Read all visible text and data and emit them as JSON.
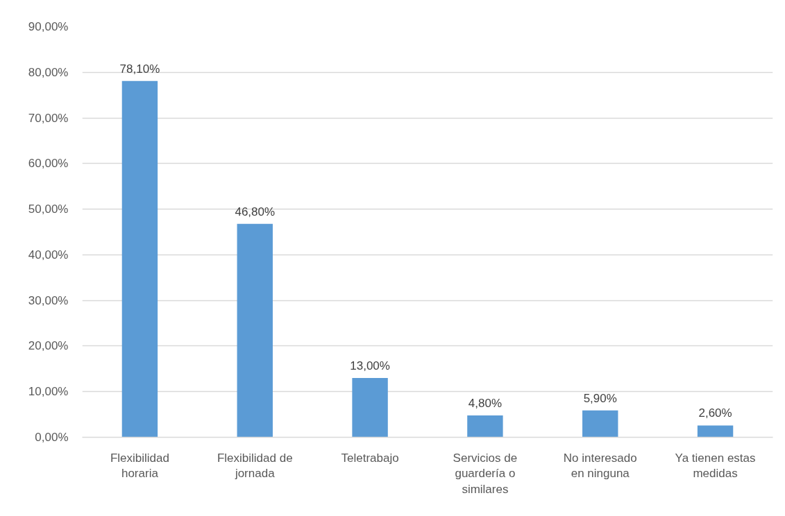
{
  "chart_data": {
    "type": "bar",
    "categories": [
      "Flexibilidad horaria",
      "Flexibilidad de jornada",
      "Teletrabajo",
      "Servicios de guardería o similares",
      "No interesado en ninguna",
      "Ya tienen estas medidas"
    ],
    "values": [
      78.1,
      46.8,
      13.0,
      4.8,
      5.9,
      2.6
    ],
    "value_labels": [
      "78,10%",
      "46,80%",
      "13,00%",
      "4,80%",
      "5,90%",
      "2,60%"
    ],
    "color": "#5b9bd5",
    "ylim": [
      0,
      90
    ],
    "yticks": [
      {
        "value": 0,
        "label": "0,00%"
      },
      {
        "value": 10,
        "label": "10,00%"
      },
      {
        "value": 20,
        "label": "20,00%"
      },
      {
        "value": 30,
        "label": "30,00%"
      },
      {
        "value": 40,
        "label": "40,00%"
      },
      {
        "value": 50,
        "label": "50,00%"
      },
      {
        "value": 60,
        "label": "60,00%"
      },
      {
        "value": 70,
        "label": "70,00%"
      },
      {
        "value": 80,
        "label": "80,00%"
      },
      {
        "value": 90,
        "label": "90,00%"
      }
    ],
    "grid": "y"
  }
}
